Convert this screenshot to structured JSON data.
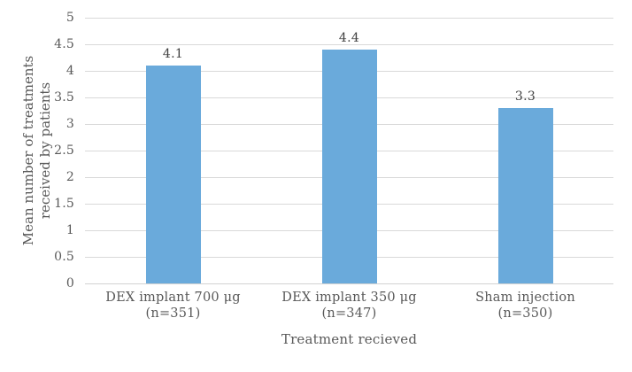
{
  "chart_data": {
    "type": "bar",
    "title": "",
    "categories": [
      {
        "line1": "DEX implant 700 μg",
        "line2": "(n=351)"
      },
      {
        "line1": "DEX implant 350 μg",
        "line2": "(n=347)"
      },
      {
        "line1": "Sham injection",
        "line2": "(n=350)"
      }
    ],
    "values": [
      4.1,
      4.4,
      3.3
    ],
    "data_labels": [
      "4.1",
      "4.4",
      "3.3"
    ],
    "xlabel": "Treatment recieved",
    "ylabel_line1": "Mean number of treatments",
    "ylabel_line2": "received by patients",
    "ylim": [
      0,
      5
    ],
    "ytick_step": 0.5,
    "yticks": [
      "5",
      "4.5",
      "4",
      "3.5",
      "3",
      "2.5",
      "2",
      "1.5",
      "1",
      "0.5",
      "0"
    ],
    "grid": "horizontal",
    "legend": "none",
    "bar_color": "#6AAADB",
    "gridline_color": "#D9D9D9",
    "text_color": "#595959",
    "data_label_color": "#404040"
  }
}
